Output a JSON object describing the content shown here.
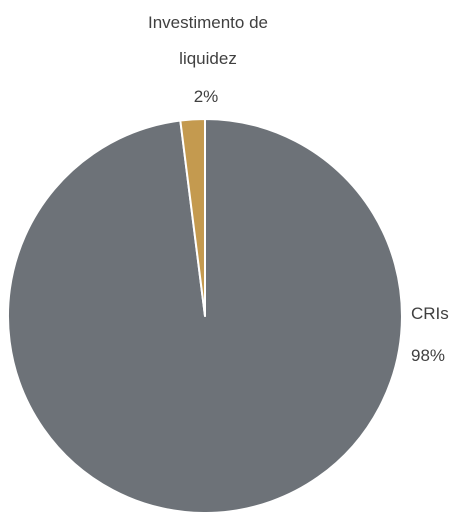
{
  "chart_data": {
    "type": "pie",
    "title": "",
    "slices": [
      {
        "label": "CRIs",
        "value": 98,
        "value_label": "98%",
        "color": "#6d7278"
      },
      {
        "label_lines": [
          "Investimento de",
          "liquidez"
        ],
        "value": 2,
        "value_label": "2%",
        "color": "#c49a4f"
      }
    ],
    "start_angle_deg": 0,
    "direction": "clockwise",
    "legend": "none"
  }
}
